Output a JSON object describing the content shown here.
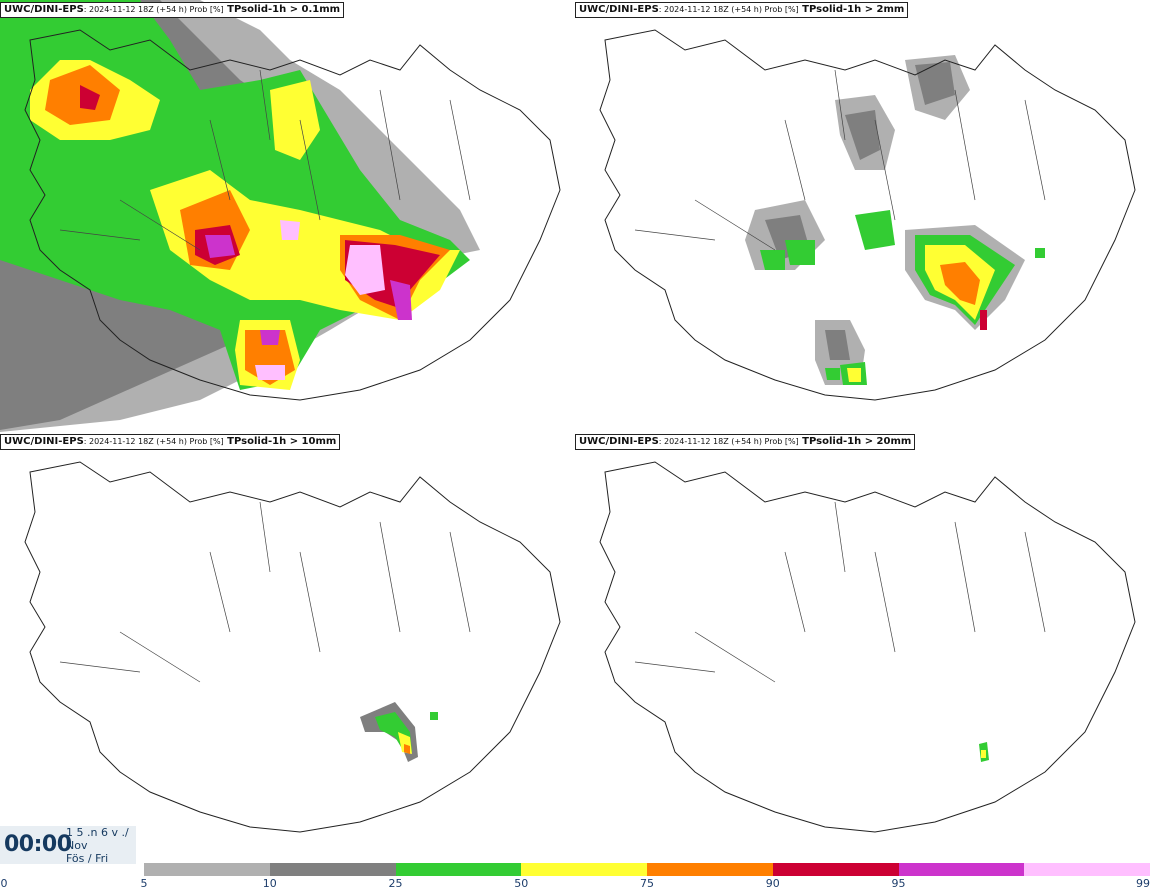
{
  "panels": [
    {
      "model": "UWC/DINI-EPS",
      "meta": ": 2024-11-12 18Z (+54 h) Prob [%]",
      "param": " TPsolid-1h > 0.1mm"
    },
    {
      "model": "UWC/DINI-EPS",
      "meta": ": 2024-11-12 18Z (+54 h) Prob [%]",
      "param": " TPsolid-1h > 2mm"
    },
    {
      "model": "UWC/DINI-EPS",
      "meta": ": 2024-11-12 18Z (+54 h) Prob [%]",
      "param": " TPsolid-1h > 10mm"
    },
    {
      "model": "UWC/DINI-EPS",
      "meta": ": 2024-11-12 18Z (+54 h) Prob [%]",
      "param": " TPsolid-1h > 20mm"
    }
  ],
  "valid_time": {
    "hour": "00:00",
    "date_line": "1 5 .n 6 v ./",
    "month": "Nov",
    "weekday": "Fös / Fri"
  },
  "legend": {
    "ticks": [
      "0",
      "5",
      "10",
      "25",
      "50",
      "75",
      "90",
      "95",
      "99"
    ],
    "colors": [
      "#b0b0b0",
      "#7f7f7f",
      "#33cc33",
      "#ffff33",
      "#ff7f00",
      "#cc0033",
      "#cc33cc",
      "#ffbfff"
    ]
  }
}
